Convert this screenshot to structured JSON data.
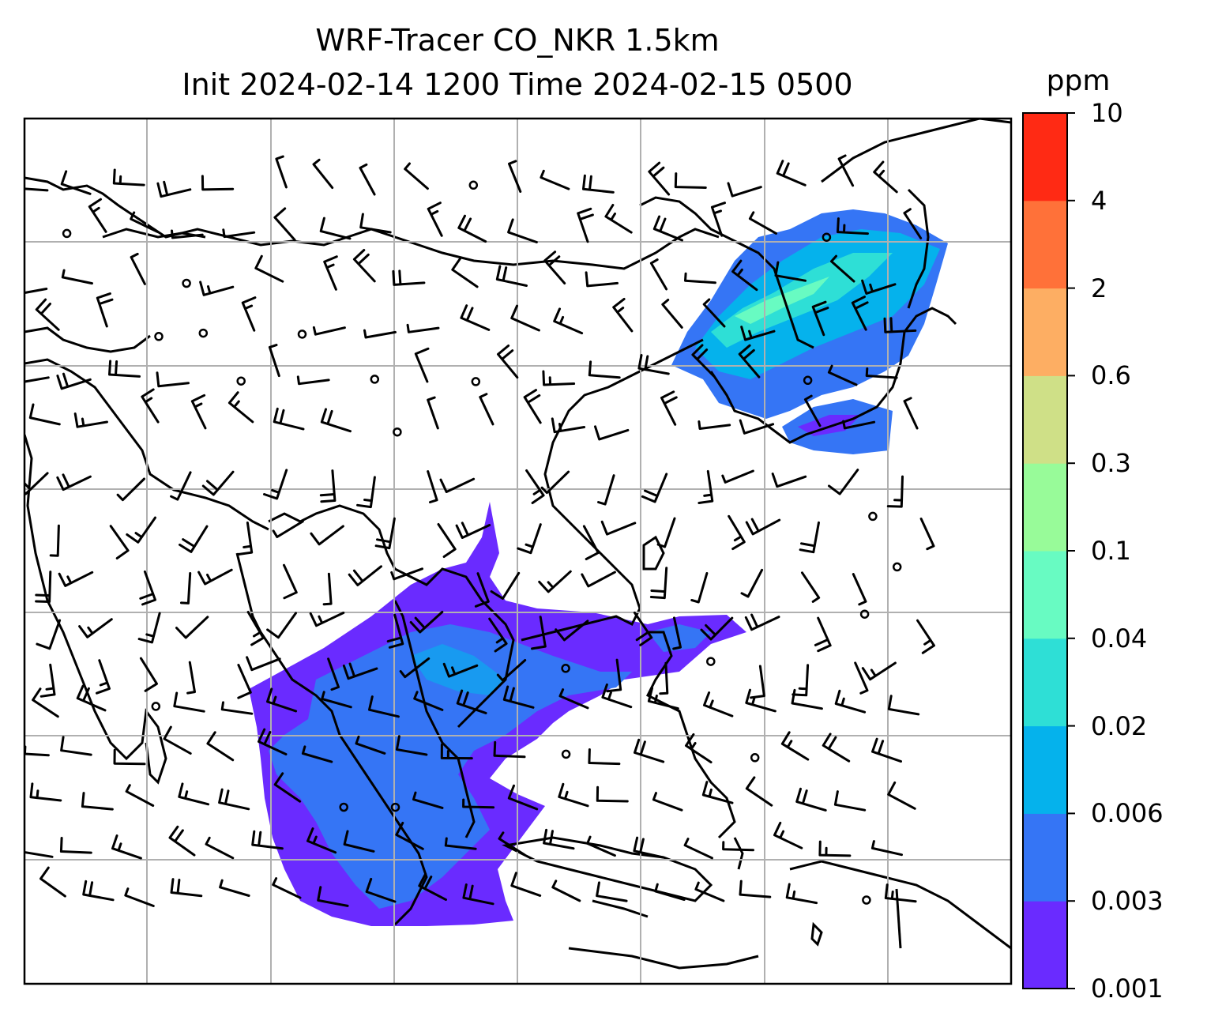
{
  "title": {
    "line1": "WRF-Tracer CO_NKR 1.5km",
    "line2": "Init 2024-02-14 1200 Time 2024-02-15 0500"
  },
  "colorbar": {
    "unit": "ppm",
    "ticks": [
      "0.001",
      "0.003",
      "0.006",
      "0.02",
      "0.04",
      "0.1",
      "0.3",
      "0.6",
      "2",
      "4",
      "10"
    ],
    "colors": [
      "#6a2bff",
      "#3575f5",
      "#05b2ec",
      "#2edfd6",
      "#68fbc2",
      "#98fb99",
      "#cfe087",
      "#fdae63",
      "#ff7139",
      "#ff2a14"
    ]
  },
  "map": {
    "background": "#ffffff",
    "gridlines": true,
    "grid_color": "#b0b0b0",
    "coastline_color": "#000000",
    "barb_color": "#000000"
  }
}
